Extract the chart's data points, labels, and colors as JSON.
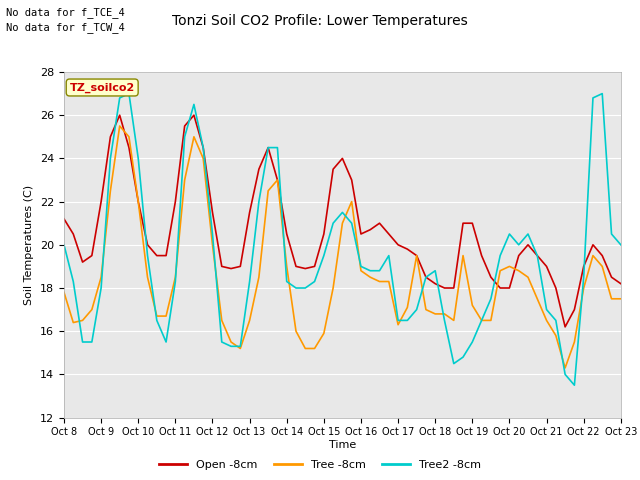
{
  "title": "Tonzi Soil CO2 Profile: Lower Temperatures",
  "ylabel": "Soil Temperatures (C)",
  "xlabel": "Time",
  "ylim": [
    12,
    28
  ],
  "bg_color": "#e8e8e8",
  "annotation1": "No data for f_TCE_4",
  "annotation2": "No data for f_TCW_4",
  "legend_box_label": "TZ_soilco2",
  "xtick_labels": [
    "Oct 8",
    "Oct 9",
    "Oct 10",
    "Oct 11",
    "Oct 12",
    "Oct 13",
    "Oct 14",
    "Oct 15",
    "Oct 16",
    "Oct 17",
    "Oct 18",
    "Oct 19",
    "Oct 20",
    "Oct 21",
    "Oct 22",
    "Oct 23"
  ],
  "line_colors": {
    "open": "#cc0000",
    "tree": "#ff9900",
    "tree2": "#00cccc"
  },
  "legend_labels": [
    "Open -8cm",
    "Tree -8cm",
    "Tree2 -8cm"
  ],
  "open_x": [
    0,
    6,
    12,
    18,
    24,
    30,
    36,
    42,
    48,
    54,
    60,
    66,
    72,
    78,
    84,
    90,
    96,
    102,
    108,
    114,
    120,
    126,
    132,
    138,
    144,
    150,
    156,
    162,
    168,
    174,
    180,
    186,
    192,
    198,
    204,
    210,
    216,
    222,
    228,
    234,
    240,
    246,
    252,
    258,
    264,
    270,
    276,
    282,
    288,
    294,
    300,
    306,
    312,
    318,
    324,
    330,
    336,
    342,
    348,
    354,
    360
  ],
  "open_y": [
    21.2,
    20.5,
    19.2,
    19.5,
    22.0,
    25.0,
    26.0,
    24.5,
    22.0,
    20.0,
    19.5,
    19.5,
    22.0,
    25.5,
    26.0,
    24.5,
    21.5,
    19.0,
    18.9,
    19.0,
    21.5,
    23.5,
    24.5,
    23.0,
    20.5,
    19.0,
    18.9,
    19.0,
    20.5,
    23.5,
    24.0,
    23.0,
    20.5,
    20.7,
    21.0,
    20.5,
    20.0,
    19.8,
    19.5,
    18.5,
    18.2,
    18.0,
    18.0,
    21.0,
    21.0,
    19.5,
    18.5,
    18.0,
    18.0,
    19.5,
    20.0,
    19.5,
    19.0,
    18.0,
    16.2,
    17.0,
    19.0,
    20.0,
    19.5,
    18.5,
    18.2
  ],
  "tree_x": [
    0,
    6,
    12,
    18,
    24,
    30,
    36,
    42,
    48,
    54,
    60,
    66,
    72,
    78,
    84,
    90,
    96,
    102,
    108,
    114,
    120,
    126,
    132,
    138,
    144,
    150,
    156,
    162,
    168,
    174,
    180,
    186,
    192,
    198,
    204,
    210,
    216,
    222,
    228,
    234,
    240,
    246,
    252,
    258,
    264,
    270,
    276,
    282,
    288,
    294,
    300,
    306,
    312,
    318,
    324,
    330,
    336,
    342,
    348,
    354,
    360
  ],
  "tree_y": [
    17.8,
    16.4,
    16.5,
    17.0,
    18.5,
    22.5,
    25.5,
    25.0,
    22.0,
    18.5,
    16.7,
    16.7,
    18.5,
    23.0,
    25.0,
    24.0,
    20.0,
    16.5,
    15.5,
    15.2,
    16.5,
    18.5,
    22.5,
    23.0,
    19.0,
    16.0,
    15.2,
    15.2,
    15.9,
    18.0,
    21.0,
    22.0,
    18.8,
    18.5,
    18.3,
    18.3,
    16.3,
    17.1,
    19.5,
    17.0,
    16.8,
    16.8,
    16.5,
    19.5,
    17.2,
    16.5,
    16.5,
    18.8,
    19.0,
    18.8,
    18.5,
    17.5,
    16.5,
    15.8,
    14.3,
    15.5,
    18.0,
    19.5,
    19.0,
    17.5,
    17.5
  ],
  "tree2_x": [
    0,
    6,
    12,
    18,
    24,
    30,
    36,
    42,
    48,
    54,
    60,
    66,
    72,
    78,
    84,
    90,
    96,
    102,
    108,
    114,
    120,
    126,
    132,
    138,
    144,
    150,
    156,
    162,
    168,
    174,
    180,
    186,
    192,
    198,
    204,
    210,
    216,
    222,
    228,
    234,
    240,
    246,
    252,
    258,
    264,
    270,
    276,
    282,
    288,
    294,
    300,
    306,
    312,
    318,
    324,
    330,
    336,
    342,
    348,
    354,
    360
  ],
  "tree2_y": [
    20.0,
    18.3,
    15.5,
    15.5,
    18.0,
    24.0,
    26.8,
    27.0,
    24.0,
    19.5,
    16.5,
    15.5,
    18.3,
    25.0,
    26.5,
    24.5,
    20.5,
    15.5,
    15.3,
    15.3,
    18.3,
    22.0,
    24.5,
    24.5,
    18.3,
    18.0,
    18.0,
    18.3,
    19.5,
    21.0,
    21.5,
    21.0,
    19.0,
    18.8,
    18.8,
    19.5,
    16.5,
    16.5,
    17.0,
    18.5,
    18.8,
    16.5,
    14.5,
    14.8,
    15.5,
    16.5,
    17.5,
    19.5,
    20.5,
    20.0,
    20.5,
    19.5,
    17.0,
    16.5,
    14.0,
    13.5,
    18.5,
    26.8,
    27.0,
    20.5,
    20.0
  ]
}
